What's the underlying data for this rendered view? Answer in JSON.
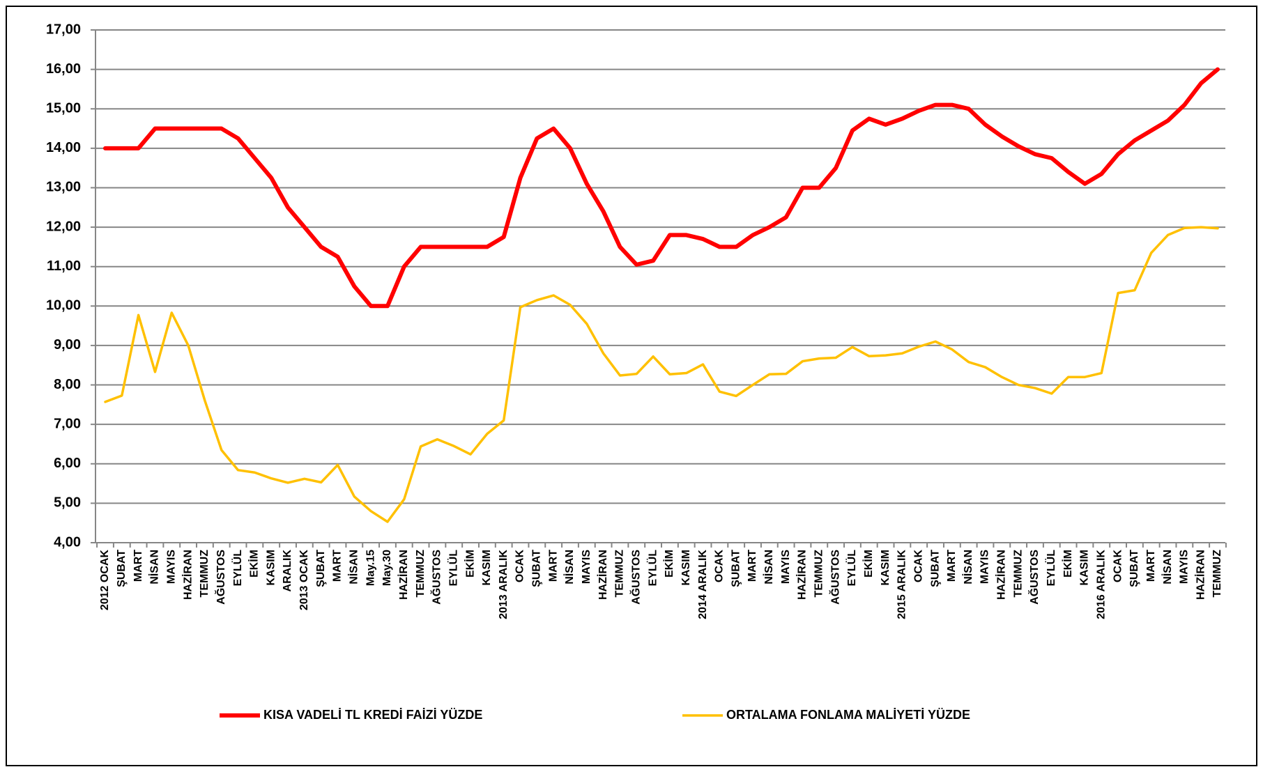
{
  "chart_data": {
    "type": "line",
    "categories": [
      "2012 OCAK",
      "ŞUBAT",
      "MART",
      "NİSAN",
      "MAYIS",
      "HAZİRAN",
      "TEMMUZ",
      "AĞUSTOS",
      "EYLÜL",
      "EKİM",
      "KASIM",
      "ARALIK",
      "2013 OCAK",
      "ŞUBAT",
      "MART",
      "NİSAN",
      "May.15",
      "May.30",
      "HAZİRAN",
      "TEMMUZ",
      "AĞUSTOS",
      "EYLÜL",
      "EKİM",
      "KASIM",
      "2013 ARALIK",
      "OCAK",
      "ŞUBAT",
      "MART",
      "NİSAN",
      "MAYIS",
      "HAZİRAN",
      "TEMMUZ",
      "AĞUSTOS",
      "EYLÜL",
      "EKİM",
      "KASIM",
      "2014 ARALIK",
      "OCAK",
      "ŞUBAT",
      "MART",
      "NİSAN",
      "MAYIS",
      "HAZİRAN",
      "TEMMUZ",
      "AĞUSTOS",
      "EYLÜL",
      "EKİM",
      "KASIM",
      "2015 ARALIK",
      "OCAK",
      "ŞUBAT",
      "MART",
      "NİSAN",
      "MAYIS",
      "HAZİRAN",
      "TEMMUZ",
      "AĞUSTOS",
      "EYLÜL",
      "EKİM",
      "KASIM",
      "2016 ARALIK",
      "OCAK",
      "ŞUBAT",
      "MART",
      "NİSAN",
      "MAYIS",
      "HAZİRAN",
      "TEMMUZ"
    ],
    "series": [
      {
        "name": "KISA VADELİ TL KREDİ FAİZİ YÜZDE",
        "color": "#ff0000",
        "values": [
          14.0,
          14.0,
          14.0,
          14.5,
          14.5,
          14.5,
          14.5,
          14.5,
          14.25,
          13.75,
          13.25,
          12.5,
          12.0,
          11.5,
          11.25,
          10.5,
          10.0,
          10.0,
          11.0,
          11.5,
          11.5,
          11.5,
          11.5,
          11.5,
          11.75,
          13.25,
          14.25,
          14.5,
          14.0,
          13.1,
          12.4,
          11.5,
          11.05,
          11.15,
          11.8,
          11.8,
          11.7,
          11.5,
          11.5,
          11.8,
          12.0,
          12.25,
          13.0,
          13.0,
          13.5,
          14.45,
          14.75,
          14.6,
          14.75,
          14.95,
          15.1,
          15.1,
          15.0,
          14.6,
          14.3,
          14.05,
          13.85,
          13.75,
          13.4,
          13.1,
          13.35,
          13.85,
          14.2,
          14.45,
          14.7,
          15.1,
          15.65,
          16.0
        ]
      },
      {
        "name": "ORTALAMA FONLAMA MALİYETİ YÜZDE",
        "color": "#ffc000",
        "values": [
          7.57,
          7.73,
          9.77,
          8.33,
          9.83,
          9.0,
          7.6,
          6.35,
          5.84,
          5.78,
          5.63,
          5.52,
          5.62,
          5.53,
          5.97,
          5.17,
          4.8,
          4.53,
          5.1,
          6.44,
          6.62,
          6.45,
          6.24,
          6.76,
          7.1,
          9.97,
          10.15,
          10.27,
          10.03,
          9.55,
          8.8,
          8.24,
          8.28,
          8.72,
          8.27,
          8.3,
          8.52,
          7.83,
          7.72,
          8.0,
          8.27,
          8.28,
          8.6,
          8.67,
          8.69,
          8.96,
          8.73,
          8.75,
          8.8,
          8.97,
          9.1,
          8.9,
          8.58,
          8.45,
          8.2,
          8.0,
          7.92,
          7.78,
          8.2,
          8.2,
          8.3,
          10.33,
          10.4,
          11.35,
          11.8,
          11.98,
          12.0,
          11.97
        ]
      }
    ],
    "ylim": [
      4,
      17
    ],
    "yticks": [
      {
        "value": 4,
        "label": "4,00"
      },
      {
        "value": 5,
        "label": "5,00"
      },
      {
        "value": 6,
        "label": "6,00"
      },
      {
        "value": 7,
        "label": "7,00"
      },
      {
        "value": 8,
        "label": "8,00"
      },
      {
        "value": 9,
        "label": "9,00"
      },
      {
        "value": 10,
        "label": "10,00"
      },
      {
        "value": 11,
        "label": "11,00"
      },
      {
        "value": 12,
        "label": "12,00"
      },
      {
        "value": 13,
        "label": "13,00"
      },
      {
        "value": 14,
        "label": "14,00"
      },
      {
        "value": 15,
        "label": "15,00"
      },
      {
        "value": 16,
        "label": "16,00"
      },
      {
        "value": 17,
        "label": "17,00"
      }
    ],
    "grid": true,
    "legend": "bottom"
  }
}
